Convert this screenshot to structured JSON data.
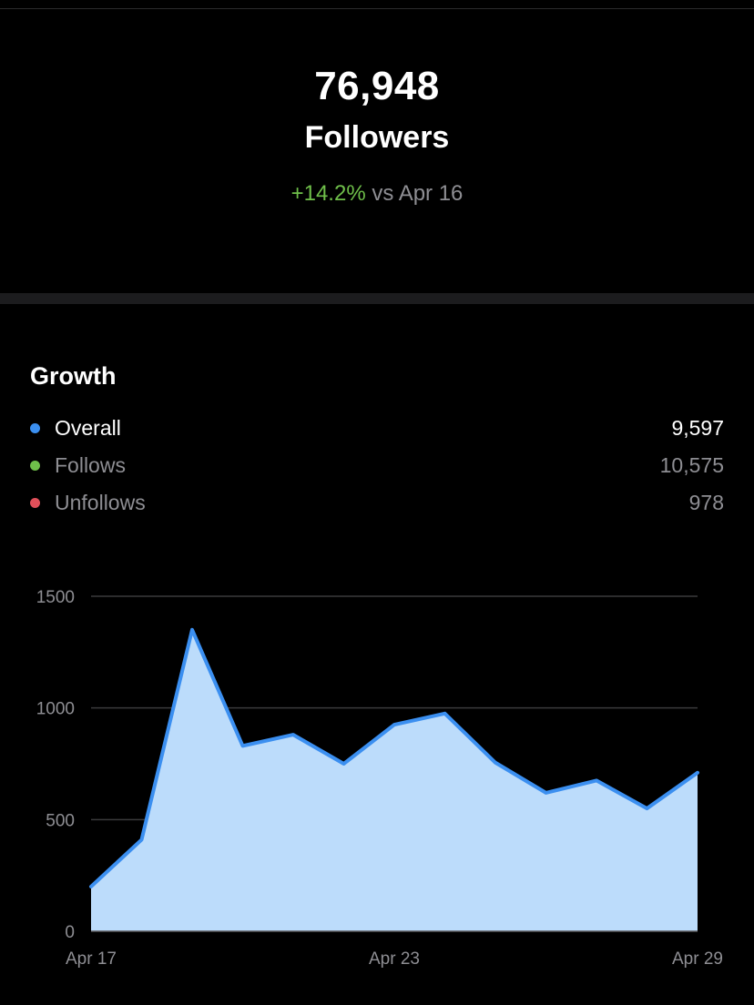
{
  "header": {
    "count": "76,948",
    "label": "Followers",
    "change_pct": "+14.2%",
    "change_suffix": "vs Apr 16"
  },
  "growth": {
    "title": "Growth",
    "items": [
      {
        "label": "Overall",
        "value": "9,597",
        "color": "#3b8ff0",
        "text_color": "#ffffff"
      },
      {
        "label": "Follows",
        "value": "10,575",
        "color": "#6fbf4a",
        "text_color": "#8e8e93"
      },
      {
        "label": "Unfollows",
        "value": "978",
        "color": "#e0505a",
        "text_color": "#8e8e93"
      }
    ]
  },
  "chart_data": {
    "type": "area",
    "x": [
      "Apr 17",
      "Apr 18",
      "Apr 19",
      "Apr 20",
      "Apr 21",
      "Apr 22",
      "Apr 23",
      "Apr 24",
      "Apr 25",
      "Apr 26",
      "Apr 27",
      "Apr 28",
      "Apr 29"
    ],
    "series": [
      {
        "values": [
          200,
          410,
          1350,
          830,
          880,
          750,
          925,
          975,
          755,
          620,
          675,
          550,
          710
        ]
      }
    ],
    "x_tick_labels": [
      "Apr 17",
      "Apr 23",
      "Apr 29"
    ],
    "y_ticks": [
      0,
      500,
      1000,
      1500
    ],
    "ylim": [
      0,
      1500
    ],
    "grid": true,
    "line_color": "#3b8ff0",
    "fill_color": "#bcdcfb"
  }
}
